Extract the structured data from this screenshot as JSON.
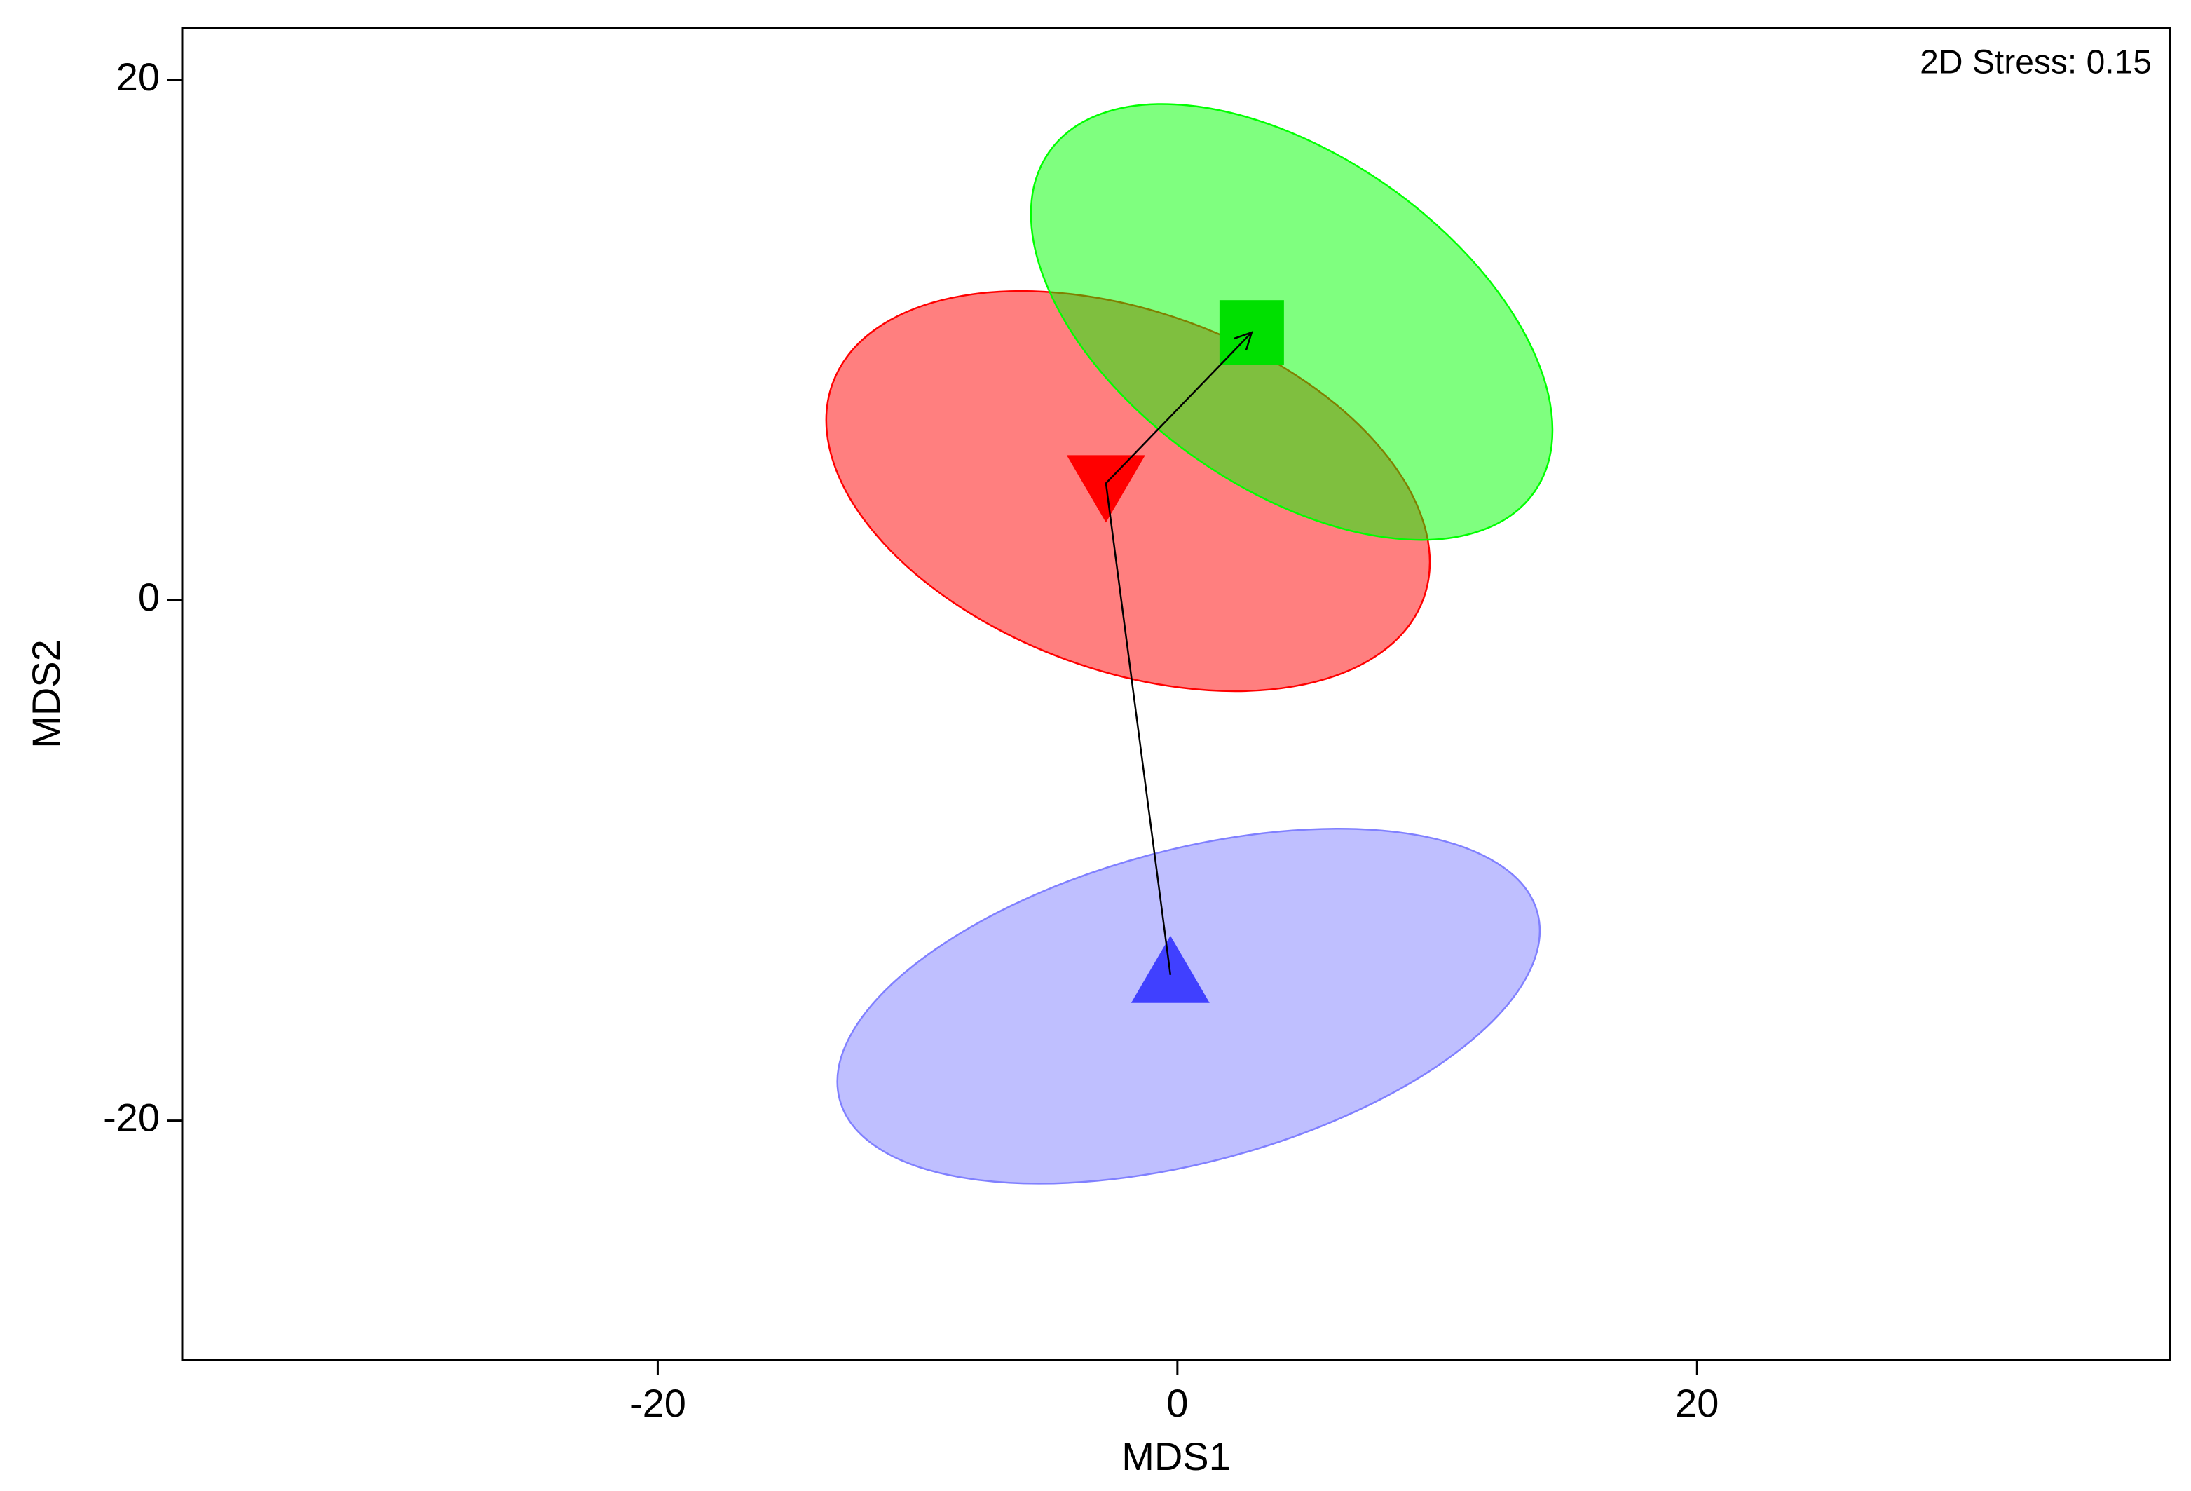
{
  "chart_data": {
    "type": "scatter",
    "xlabel": "MDS1",
    "ylabel": "MDS2",
    "annotation": "2D Stress: 0.15",
    "xlim": [
      -38.3,
      38.2
    ],
    "ylim": [
      -29.2,
      22
    ],
    "xticks": [
      -20,
      0,
      20
    ],
    "yticks": [
      -20,
      0,
      20
    ],
    "series": [
      {
        "color": "#4040ff",
        "marker": "triangle-up",
        "x": [
          -0.27
        ],
        "y": [
          -14.4
        ],
        "ellipse": {
          "cx": 0.43,
          "cy": -15.6,
          "rx": 13.9,
          "ry": 6.0,
          "angle": 15,
          "color": "#8080ff"
        }
      },
      {
        "color": "#ff0000",
        "marker": "triangle-down",
        "x": [
          -2.75
        ],
        "y": [
          4.5
        ],
        "ellipse": {
          "cx": -1.9,
          "cy": 4.2,
          "rx": 12.1,
          "ry": 6.9,
          "angle": -20,
          "color": "#ff0000"
        }
      },
      {
        "color": "#00e000",
        "marker": "square",
        "x": [
          2.86
        ],
        "y": [
          10.3
        ],
        "ellipse": {
          "cx": 4.4,
          "cy": 10.7,
          "rx": 11.4,
          "ry": 6.4,
          "angle": -35,
          "color": "#00ff00"
        }
      }
    ],
    "trajectory": true
  }
}
